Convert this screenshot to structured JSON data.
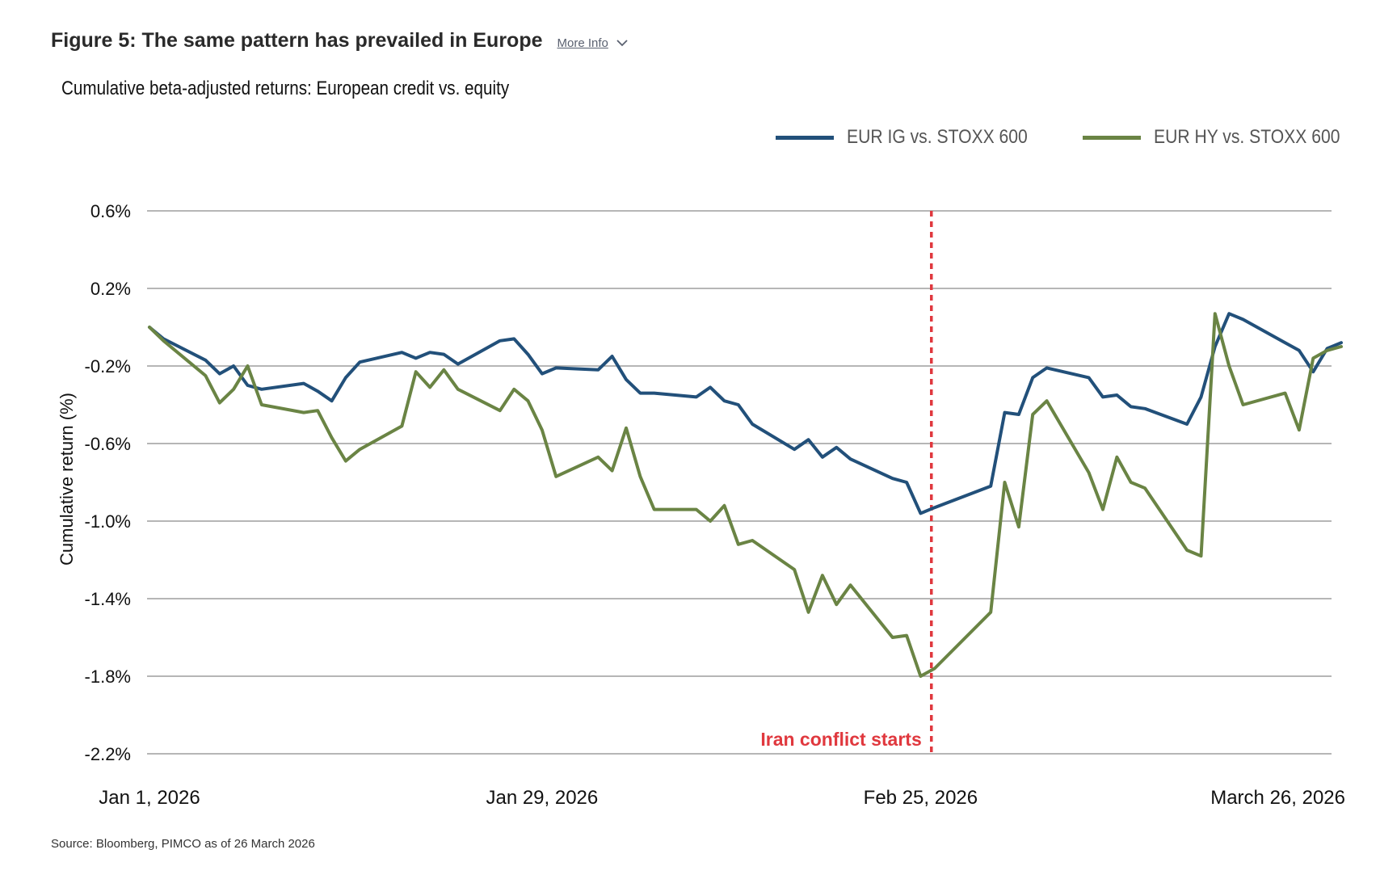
{
  "header": {
    "title": "Figure 5: The same pattern has prevailed in Europe",
    "more_info": "More Info"
  },
  "footer": {
    "source": "Source: Bloomberg, PIMCO as of 26 March 2026"
  },
  "chart_data": {
    "type": "line",
    "title": "Cumulative beta-adjusted returns: European credit vs. equity",
    "ylabel": "Cumulative return (%)",
    "xlabel": "",
    "ylim": [
      -2.2,
      0.6
    ],
    "yticks": [
      0.6,
      0.2,
      -0.2,
      -0.6,
      -1.0,
      -1.4,
      -1.8,
      -2.2
    ],
    "ytick_labels": [
      "0.6%",
      "0.2%",
      "-0.2%",
      "-0.6%",
      "-1.0%",
      "-1.4%",
      "-1.8%",
      "-2.2%"
    ],
    "x_range": [
      "2026-01-01",
      "2026-03-27"
    ],
    "xtick_labels": [
      {
        "date": "2026-01-01",
        "label": "Jan 1, 2026"
      },
      {
        "date": "2026-01-29",
        "label": "Jan 29, 2026"
      },
      {
        "date": "2026-02-25",
        "label": "Feb 25, 2026"
      },
      {
        "date": "2026-03-26",
        "label": "March 26, 2026"
      }
    ],
    "grid": true,
    "legend": "top-right",
    "annotation": {
      "date": "2026-02-26",
      "label": "Iran conflict starts",
      "color": "#e0383e"
    },
    "dates": [
      "2026-01-01",
      "2026-01-02",
      "2026-01-05",
      "2026-01-06",
      "2026-01-07",
      "2026-01-08",
      "2026-01-09",
      "2026-01-12",
      "2026-01-13",
      "2026-01-14",
      "2026-01-15",
      "2026-01-16",
      "2026-01-19",
      "2026-01-20",
      "2026-01-21",
      "2026-01-22",
      "2026-01-23",
      "2026-01-26",
      "2026-01-27",
      "2026-01-28",
      "2026-01-29",
      "2026-01-30",
      "2026-02-02",
      "2026-02-03",
      "2026-02-04",
      "2026-02-05",
      "2026-02-06",
      "2026-02-09",
      "2026-02-10",
      "2026-02-11",
      "2026-02-12",
      "2026-02-13",
      "2026-02-16",
      "2026-02-17",
      "2026-02-18",
      "2026-02-19",
      "2026-02-20",
      "2026-02-23",
      "2026-02-24",
      "2026-02-25",
      "2026-02-26",
      "2026-03-02",
      "2026-03-03",
      "2026-03-04",
      "2026-03-05",
      "2026-03-06",
      "2026-03-09",
      "2026-03-10",
      "2026-03-11",
      "2026-03-12",
      "2026-03-13",
      "2026-03-16",
      "2026-03-17",
      "2026-03-18",
      "2026-03-19",
      "2026-03-20",
      "2026-03-23",
      "2026-03-24",
      "2026-03-25",
      "2026-03-26",
      "2026-03-27"
    ],
    "series": [
      {
        "name": "EUR IG vs. STOXX 600",
        "color": "#22507a",
        "values": [
          0.0,
          -0.06,
          -0.17,
          -0.24,
          -0.2,
          -0.3,
          -0.32,
          -0.29,
          -0.33,
          -0.38,
          -0.26,
          -0.18,
          -0.13,
          -0.16,
          -0.13,
          -0.14,
          -0.19,
          -0.07,
          -0.06,
          -0.14,
          -0.24,
          -0.21,
          -0.22,
          -0.15,
          -0.27,
          -0.34,
          -0.34,
          -0.36,
          -0.31,
          -0.38,
          -0.4,
          -0.5,
          -0.63,
          -0.58,
          -0.67,
          -0.62,
          -0.68,
          -0.78,
          -0.8,
          -0.96,
          -0.93,
          -0.82,
          -0.44,
          -0.45,
          -0.26,
          -0.21,
          -0.26,
          -0.36,
          -0.35,
          -0.41,
          -0.42,
          -0.5,
          -0.36,
          -0.1,
          0.07,
          0.04,
          -0.08,
          -0.12,
          -0.23,
          -0.11,
          -0.08
        ]
      },
      {
        "name": "EUR HY vs. STOXX 600",
        "color": "#6a8444",
        "values": [
          0.0,
          -0.07,
          -0.25,
          -0.39,
          -0.32,
          -0.2,
          -0.4,
          -0.44,
          -0.43,
          -0.57,
          -0.69,
          -0.63,
          -0.51,
          -0.23,
          -0.31,
          -0.22,
          -0.32,
          -0.43,
          -0.32,
          -0.38,
          -0.53,
          -0.77,
          -0.67,
          -0.74,
          -0.52,
          -0.77,
          -0.94,
          -0.94,
          -1.0,
          -0.92,
          -1.12,
          -1.1,
          -1.25,
          -1.47,
          -1.28,
          -1.43,
          -1.33,
          -1.6,
          -1.59,
          -1.8,
          -1.76,
          -1.47,
          -0.8,
          -1.03,
          -0.45,
          -0.38,
          -0.75,
          -0.94,
          -0.67,
          -0.8,
          -0.83,
          -1.15,
          -1.18,
          0.07,
          -0.2,
          -0.4,
          -0.34,
          -0.53,
          -0.16,
          -0.12,
          -0.1
        ]
      }
    ]
  }
}
